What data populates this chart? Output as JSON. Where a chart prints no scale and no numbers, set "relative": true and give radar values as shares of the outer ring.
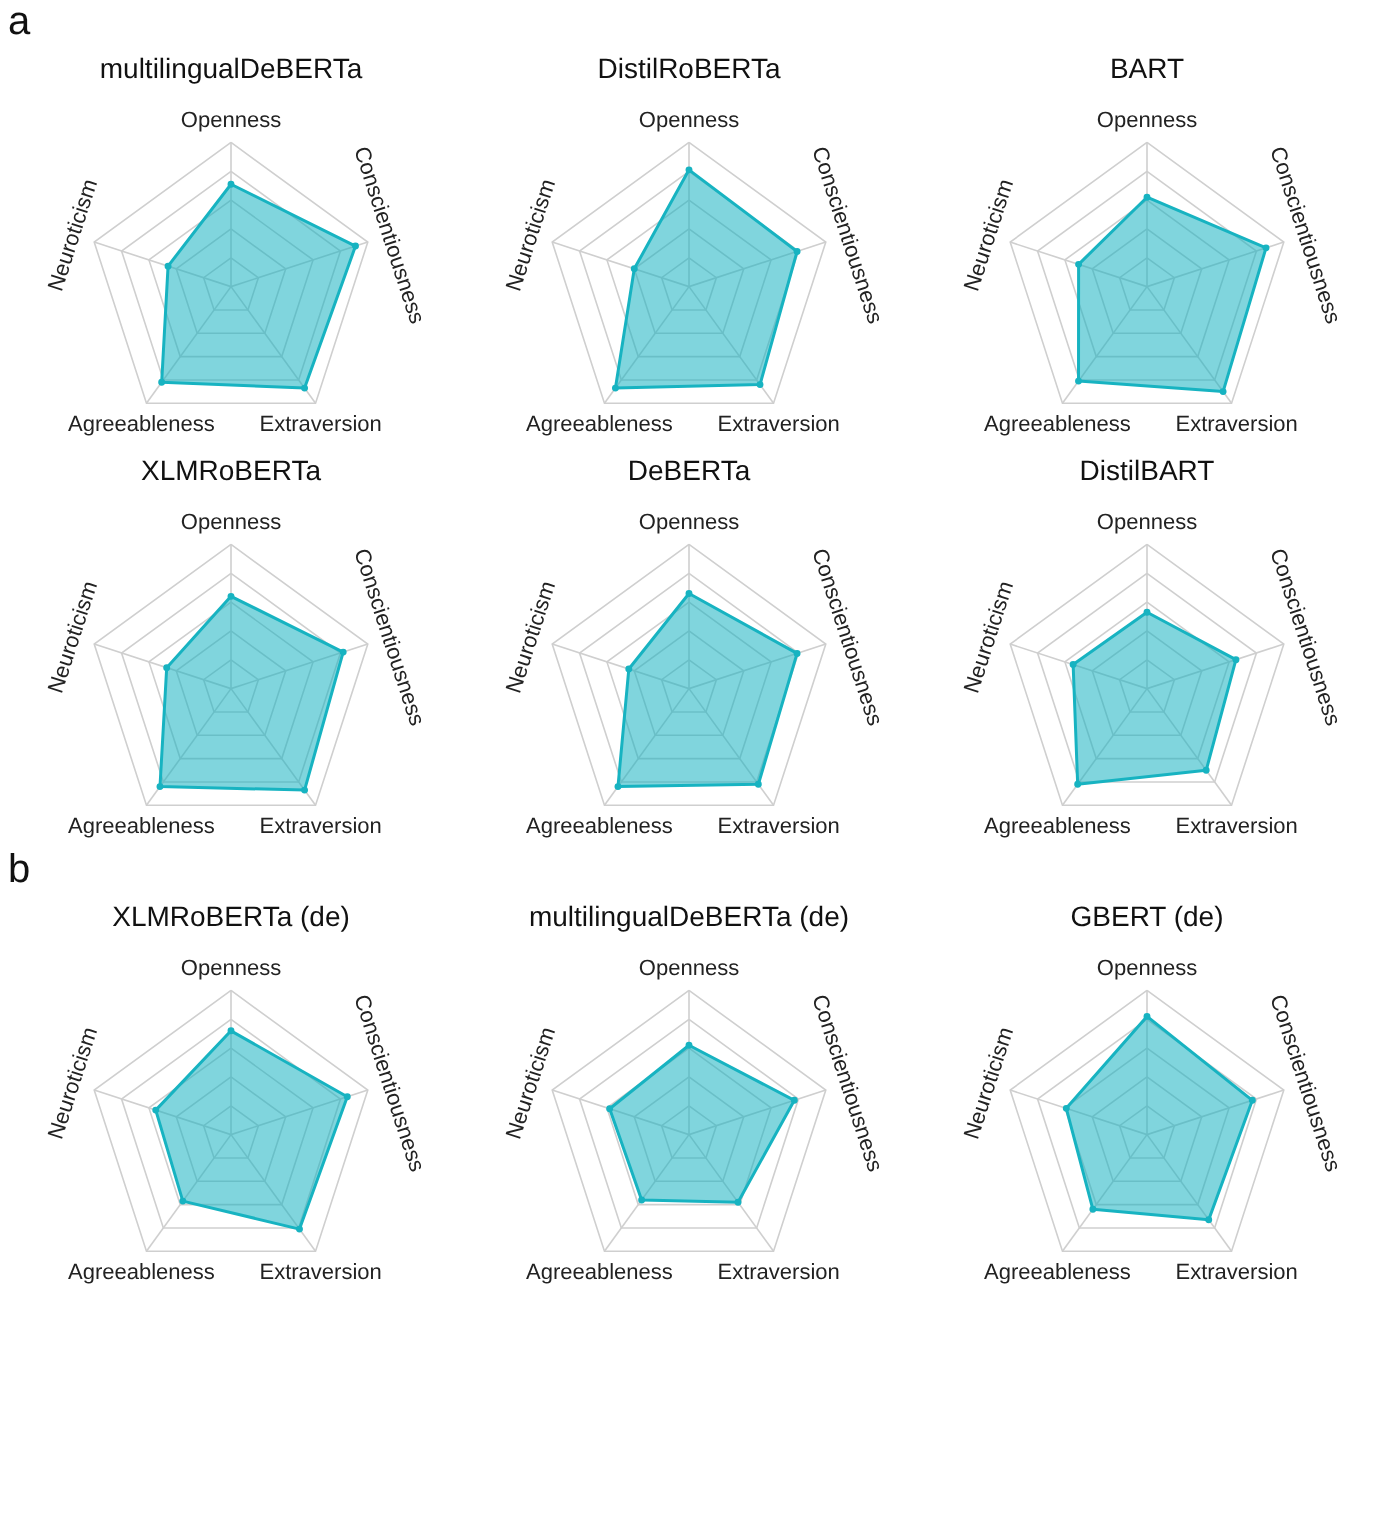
{
  "chart_data": [
    {
      "type": "radar",
      "title": "multilingualDeBERTa",
      "annotations": [
        "a"
      ],
      "categories": [
        "Openness",
        "Conscientiousness",
        "Extraversion",
        "Agreeableness",
        "Neuroticism"
      ],
      "relative": true,
      "grid": true,
      "marker": "circle",
      "series": [
        {
          "color": "#17b3c1",
          "values": [
            0.71,
            0.91,
            0.87,
            0.82,
            0.46
          ]
        }
      ]
    },
    {
      "type": "radar",
      "title": "DistilRoBERTa",
      "categories": [
        "Openness",
        "Conscientiousness",
        "Extraversion",
        "Agreeableness",
        "Neuroticism"
      ],
      "relative": true,
      "grid": true,
      "marker": "circle",
      "series": [
        {
          "color": "#17b3c1",
          "values": [
            0.81,
            0.79,
            0.84,
            0.87,
            0.4
          ]
        }
      ]
    },
    {
      "type": "radar",
      "title": "BART",
      "categories": [
        "Openness",
        "Conscientiousness",
        "Extraversion",
        "Agreeableness",
        "Neuroticism"
      ],
      "relative": true,
      "grid": true,
      "marker": "circle",
      "series": [
        {
          "color": "#17b3c1",
          "values": [
            0.62,
            0.87,
            0.9,
            0.81,
            0.5
          ]
        }
      ]
    },
    {
      "type": "radar",
      "title": "XLMRoBERTa",
      "categories": [
        "Openness",
        "Conscientiousness",
        "Extraversion",
        "Agreeableness",
        "Neuroticism"
      ],
      "relative": true,
      "grid": true,
      "marker": "circle",
      "series": [
        {
          "color": "#17b3c1",
          "values": [
            0.64,
            0.82,
            0.87,
            0.84,
            0.47
          ]
        }
      ]
    },
    {
      "type": "radar",
      "title": "DeBERTa",
      "categories": [
        "Openness",
        "Conscientiousness",
        "Extraversion",
        "Agreeableness",
        "Neuroticism"
      ],
      "relative": true,
      "grid": true,
      "marker": "circle",
      "series": [
        {
          "color": "#17b3c1",
          "values": [
            0.66,
            0.79,
            0.82,
            0.84,
            0.44
          ]
        }
      ]
    },
    {
      "type": "radar",
      "title": "DistilBART",
      "categories": [
        "Openness",
        "Conscientiousness",
        "Extraversion",
        "Agreeableness",
        "Neuroticism"
      ],
      "relative": true,
      "grid": true,
      "marker": "circle",
      "series": [
        {
          "color": "#17b3c1",
          "values": [
            0.53,
            0.65,
            0.7,
            0.82,
            0.54
          ]
        }
      ]
    },
    {
      "type": "radar",
      "title": "XLMRoBERTa (de)",
      "annotations": [
        "b"
      ],
      "categories": [
        "Openness",
        "Conscientiousness",
        "Extraversion",
        "Agreeableness",
        "Neuroticism"
      ],
      "relative": true,
      "grid": true,
      "marker": "circle",
      "series": [
        {
          "color": "#17b3c1",
          "values": [
            0.72,
            0.85,
            0.81,
            0.57,
            0.55
          ]
        }
      ]
    },
    {
      "type": "radar",
      "title": "multilingualDeBERTa (de)",
      "categories": [
        "Openness",
        "Conscientiousness",
        "Extraversion",
        "Agreeableness",
        "Neuroticism"
      ],
      "relative": true,
      "grid": true,
      "marker": "circle",
      "series": [
        {
          "color": "#17b3c1",
          "values": [
            0.62,
            0.77,
            0.58,
            0.56,
            0.58
          ]
        }
      ]
    },
    {
      "type": "radar",
      "title": "GBERT (de)",
      "categories": [
        "Openness",
        "Conscientiousness",
        "Extraversion",
        "Agreeableness",
        "Neuroticism"
      ],
      "relative": true,
      "grid": true,
      "marker": "circle",
      "series": [
        {
          "color": "#17b3c1",
          "values": [
            0.82,
            0.77,
            0.73,
            0.64,
            0.59
          ]
        }
      ]
    }
  ]
}
